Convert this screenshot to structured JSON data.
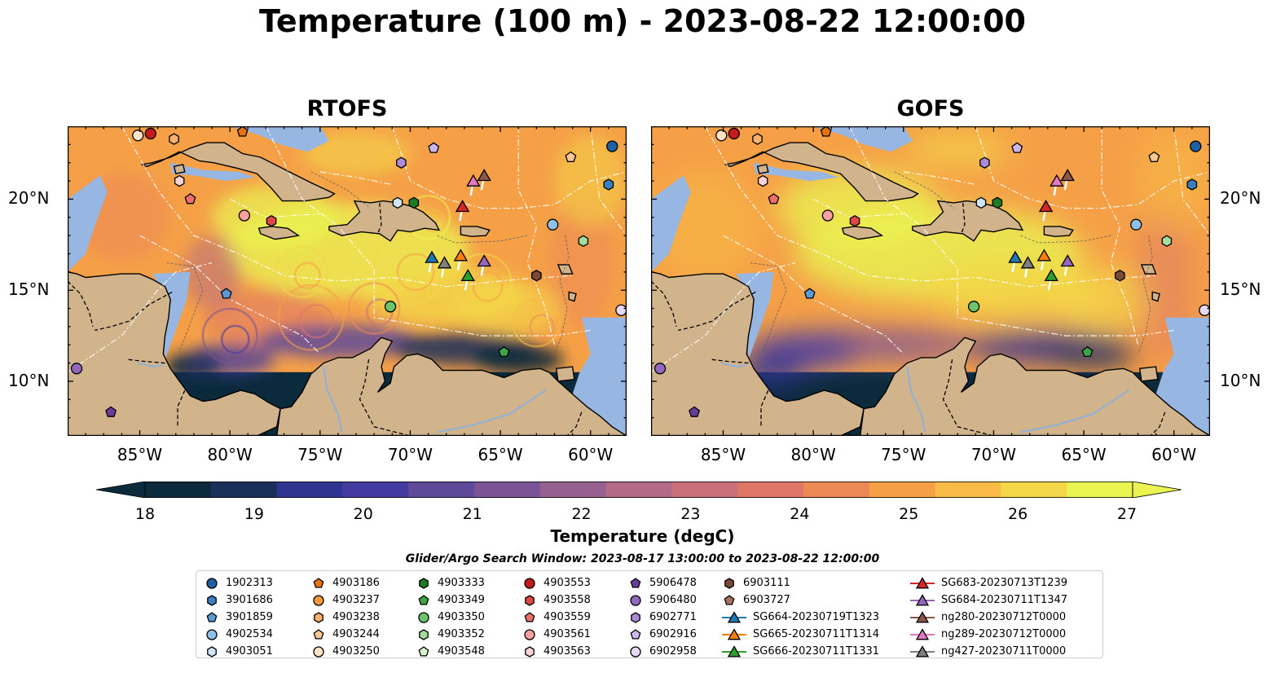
{
  "title": "Temperature (100 m) - 2023-08-22 12:00:00",
  "panels": [
    {
      "title": "RTOFS"
    },
    {
      "title": "GOFS"
    }
  ],
  "axes": {
    "lon_ticks": [
      "85°W",
      "80°W",
      "75°W",
      "70°W",
      "65°W",
      "60°W"
    ],
    "lat_ticks": [
      "20°N",
      "15°N",
      "10°N"
    ]
  },
  "colorbar": {
    "label": "Temperature (degC)",
    "ticks": [
      "18",
      "19",
      "20",
      "21",
      "22",
      "23",
      "24",
      "25",
      "26",
      "27"
    ],
    "range": [
      18,
      27
    ],
    "extend": "both",
    "colors": [
      "#0b2a3b",
      "#1a2f5a",
      "#2e3490",
      "#443ba0",
      "#5f4a9a",
      "#7a5496",
      "#96608f",
      "#b26a86",
      "#c9707a",
      "#de7768",
      "#ec8a55",
      "#f5a047",
      "#f8bb45",
      "#f3d748",
      "#e9f451"
    ]
  },
  "search_window": "Glider/Argo Search Window: 2023-08-17 13:00:00 to 2023-08-22 12:00:00",
  "legend": {
    "columns": [
      [
        {
          "label": "1902313",
          "marker": "circle",
          "color": "#1f5fa5"
        },
        {
          "label": "3901686",
          "marker": "hexagon",
          "color": "#3b7fc0"
        },
        {
          "label": "3901859",
          "marker": "pentagon",
          "color": "#5b9bd5"
        },
        {
          "label": "4902534",
          "marker": "circle",
          "color": "#8fc1e8"
        },
        {
          "label": "4903051",
          "marker": "hexagon",
          "color": "#cfe4f5"
        }
      ],
      [
        {
          "label": "4903186",
          "marker": "pentagon",
          "color": "#e8720c"
        },
        {
          "label": "4903237",
          "marker": "circle",
          "color": "#f59a3c"
        },
        {
          "label": "4903238",
          "marker": "hexagon",
          "color": "#f8b26d"
        },
        {
          "label": "4903244",
          "marker": "pentagon",
          "color": "#fcc996"
        },
        {
          "label": "4903250",
          "marker": "circle",
          "color": "#fde3c6"
        }
      ],
      [
        {
          "label": "4903333",
          "marker": "hexagon",
          "color": "#1e7a25"
        },
        {
          "label": "4903349",
          "marker": "pentagon",
          "color": "#3ea346"
        },
        {
          "label": "4903350",
          "marker": "circle",
          "color": "#6cc46b"
        },
        {
          "label": "4903352",
          "marker": "hexagon",
          "color": "#a4dc9c"
        },
        {
          "label": "4903548",
          "marker": "pentagon",
          "color": "#d6f2cf"
        }
      ],
      [
        {
          "label": "4903553",
          "marker": "circle",
          "color": "#c41b1b"
        },
        {
          "label": "4903558",
          "marker": "hexagon",
          "color": "#e04646"
        },
        {
          "label": "4903559",
          "marker": "pentagon",
          "color": "#ee6e6e"
        },
        {
          "label": "4903561",
          "marker": "circle",
          "color": "#f7a1a1"
        },
        {
          "label": "4903563",
          "marker": "hexagon",
          "color": "#fdd2d2"
        }
      ],
      [
        {
          "label": "5906478",
          "marker": "pentagon",
          "color": "#6a3d9a"
        },
        {
          "label": "5906480",
          "marker": "circle",
          "color": "#9068be"
        },
        {
          "label": "6902771",
          "marker": "hexagon",
          "color": "#ad8ad6"
        },
        {
          "label": "6902916",
          "marker": "pentagon",
          "color": "#cdb6ec"
        },
        {
          "label": "6902958",
          "marker": "circle",
          "color": "#e6d8f7"
        }
      ],
      [
        {
          "label": "6903111",
          "marker": "hexagon",
          "color": "#7a4a36"
        },
        {
          "label": "6903727",
          "marker": "pentagon",
          "color": "#a5735e"
        },
        {
          "label": "SG664-20230719T1323",
          "marker": "triangle-line",
          "color": "#1f77b4"
        },
        {
          "label": "SG665-20230711T1314",
          "marker": "triangle-line",
          "color": "#ff7f0e"
        },
        {
          "label": "SG666-20230711T1331",
          "marker": "triangle-line",
          "color": "#2ca02c"
        }
      ],
      [
        {
          "label": "SG683-20230713T1239",
          "marker": "triangle-line",
          "color": "#d62728"
        },
        {
          "label": "SG684-20230711T1347",
          "marker": "triangle-line",
          "color": "#9467bd"
        },
        {
          "label": "ng280-20230712T0000",
          "marker": "triangle-line",
          "color": "#8c564b"
        },
        {
          "label": "ng289-20230712T0000",
          "marker": "triangle-line",
          "color": "#e377c2"
        },
        {
          "label": "ng427-20230711T0000",
          "marker": "triangle-line",
          "color": "#7f7f7f"
        }
      ]
    ]
  },
  "stations": [
    {
      "id": "1902313",
      "lon": -58.8,
      "lat": 22.9
    },
    {
      "id": "3901686",
      "lon": -59.0,
      "lat": 20.8
    },
    {
      "id": "3901859",
      "lon": -80.2,
      "lat": 14.8
    },
    {
      "id": "4902534",
      "lon": -62.1,
      "lat": 18.6
    },
    {
      "id": "4903051",
      "lon": -70.7,
      "lat": 19.8
    },
    {
      "id": "4903186",
      "lon": -79.3,
      "lat": 23.7
    },
    {
      "id": "4903237",
      "lon": -81.0,
      "lat": 24.4
    },
    {
      "id": "4903238",
      "lon": -83.1,
      "lat": 23.3
    },
    {
      "id": "4903244",
      "lon": -61.1,
      "lat": 22.3
    },
    {
      "id": "4903250",
      "lon": -85.1,
      "lat": 23.5
    },
    {
      "id": "4903333",
      "lon": -69.8,
      "lat": 19.8
    },
    {
      "id": "4903349",
      "lon": -64.8,
      "lat": 11.6
    },
    {
      "id": "4903350",
      "lon": -71.1,
      "lat": 14.1
    },
    {
      "id": "4903352",
      "lon": -60.4,
      "lat": 17.7
    },
    {
      "id": "4903548",
      "lon": -67.3,
      "lat": 24.3
    },
    {
      "id": "4903553",
      "lon": -84.4,
      "lat": 23.6
    },
    {
      "id": "4903558",
      "lon": -77.7,
      "lat": 18.8
    },
    {
      "id": "4903559",
      "lon": -82.2,
      "lat": 20.0
    },
    {
      "id": "4903561",
      "lon": -79.2,
      "lat": 19.1
    },
    {
      "id": "4903563",
      "lon": -82.8,
      "lat": 21.0
    },
    {
      "id": "5906478",
      "lon": -86.6,
      "lat": 8.3
    },
    {
      "id": "5906480",
      "lon": -88.5,
      "lat": 10.7
    },
    {
      "id": "6902771",
      "lon": -70.5,
      "lat": 22.0
    },
    {
      "id": "6902916",
      "lon": -68.7,
      "lat": 22.8
    },
    {
      "id": "6902958",
      "lon": -58.3,
      "lat": 13.9
    },
    {
      "id": "6903111",
      "lon": -63.0,
      "lat": 15.8
    },
    {
      "id": "6903727",
      "lon": -61.5,
      "lat": 24.5
    }
  ],
  "gliders": [
    {
      "id": "SG664-20230719T1323",
      "lon": -68.8,
      "lat": 16.8
    },
    {
      "id": "SG665-20230711T1314",
      "lon": -67.2,
      "lat": 16.9
    },
    {
      "id": "SG666-20230711T1331",
      "lon": -66.8,
      "lat": 15.8
    },
    {
      "id": "SG683-20230713T1239",
      "lon": -67.1,
      "lat": 19.6
    },
    {
      "id": "SG684-20230711T1347",
      "lon": -65.9,
      "lat": 16.6
    },
    {
      "id": "ng280-20230712T0000",
      "lon": -65.9,
      "lat": 21.3
    },
    {
      "id": "ng289-20230712T0000",
      "lon": -66.5,
      "lat": 21.0
    },
    {
      "id": "ng427-20230711T0000",
      "lon": -68.1,
      "lat": 16.5
    }
  ],
  "extent": {
    "lon": [
      -89,
      -58
    ],
    "lat": [
      7,
      24
    ]
  }
}
